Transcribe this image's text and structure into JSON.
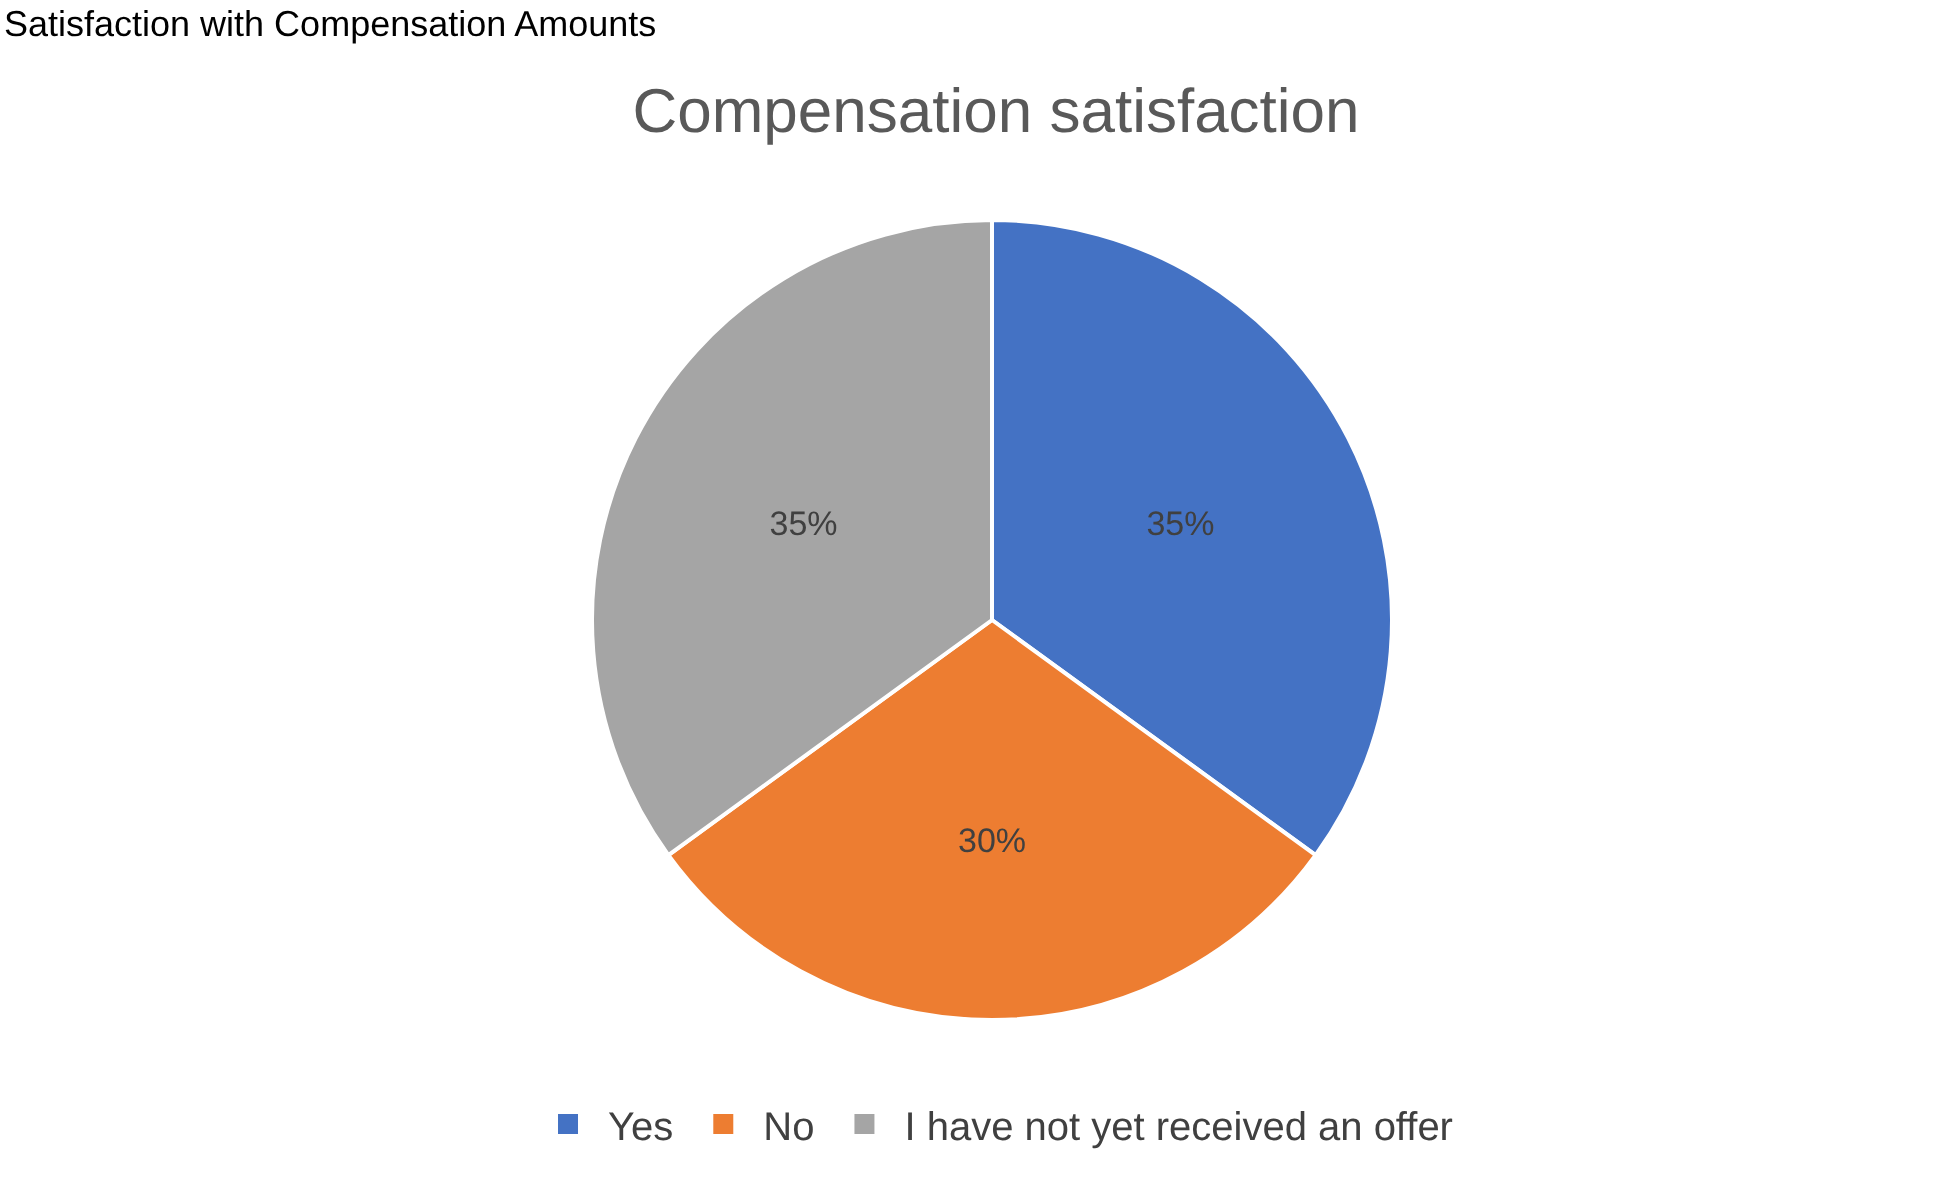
{
  "chart_data": {
    "type": "pie",
    "title": "Compensation satisfaction",
    "annotations": [
      "Satisfaction with Compensation Amounts"
    ],
    "categories": [
      "Yes",
      "No",
      "I have not yet received an offer"
    ],
    "values": [
      35,
      30,
      35
    ],
    "colors": [
      "#4472c4",
      "#ed7d31",
      "#a5a5a5"
    ],
    "value_labels": [
      "35%",
      "30%",
      "35%"
    ],
    "legend": "bottom"
  }
}
